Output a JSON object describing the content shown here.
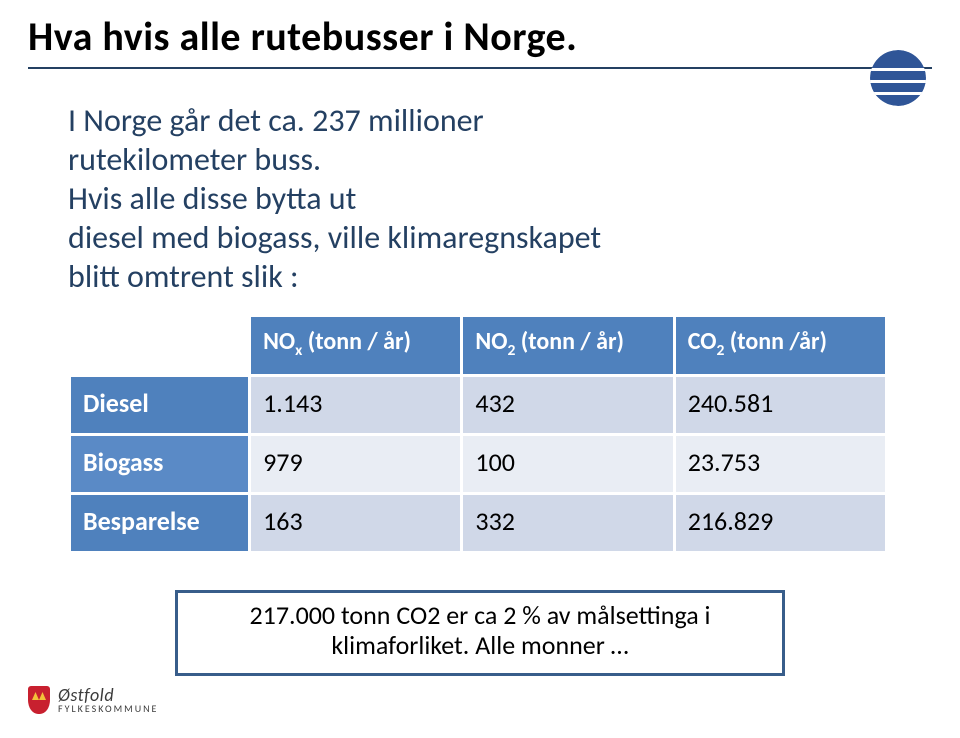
{
  "title": "Hva hvis alle rutebusser i Norge.",
  "colors": {
    "underline": "#244062",
    "dot": "#2f5597",
    "body_text": "#244062",
    "table_header_bg": "#4f81bd",
    "row_odd_bg": "#d0d8e8",
    "row_even_bg": "#e9edf4",
    "rowhead_odd_bg": "#4f81bd",
    "rowhead_even_bg": "#5a8ac6",
    "callout_border": "#385d8a",
    "callout_bg": "#ffffff",
    "logo_red": "#c8202f",
    "logo_yellow": "#f3c13a",
    "logo_text": "#3b3b3b"
  },
  "intro_lines": [
    "I Norge går det ca. 237 millioner",
    "rutekilometer buss.",
    "Hvis alle disse bytta ut",
    "diesel med biogass, ville klimaregnskapet",
    "blitt omtrent slik :"
  ],
  "table": {
    "col_widths_pct": [
      22,
      26,
      26,
      26
    ],
    "headers": [
      "",
      "NOx (tonn / år)",
      "NO2 (tonn / år)",
      "CO2 (tonn /år)"
    ],
    "header_sub_index": {
      "1": "x",
      "2": "2",
      "3": "2"
    },
    "rows": [
      {
        "label": "Diesel",
        "cells": [
          "1.143",
          "432",
          "240.581"
        ]
      },
      {
        "label": "Biogass",
        "cells": [
          "979",
          "100",
          "23.753"
        ]
      },
      {
        "label": "Besparelse",
        "cells": [
          "163",
          "332",
          "216.829"
        ]
      }
    ]
  },
  "callout_lines": [
    "217.000 tonn CO2 er ca 2 % av målsettinga i",
    "klimaforliket. Alle monner …"
  ],
  "logo": {
    "line1": "Østfold",
    "line2": "FYLKESKOMMUNE"
  }
}
